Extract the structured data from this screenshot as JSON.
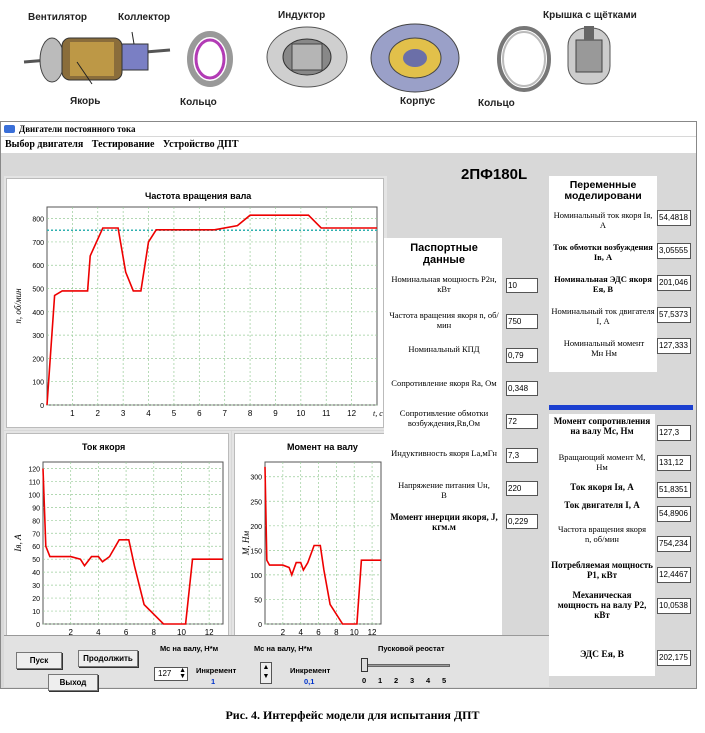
{
  "parts": {
    "fan": "Вентилятор",
    "commutator": "Коллектор",
    "armature": "Якорь",
    "ring1": "Кольцо",
    "inductor": "Индуктор",
    "housing": "Корпус",
    "ring2": "Кольцо",
    "brush_cover": "Крышка с щётками"
  },
  "window": {
    "title": "Двигатели постоянного тока",
    "menu": [
      "Выбор двигателя",
      "Тестирование",
      "Устройство ДПТ"
    ]
  },
  "motor_name": "2ПФ180L",
  "passport": {
    "header": "Паспортные данные",
    "rows": [
      {
        "label": "Номинальная мощность P2н, кВт",
        "value": "10"
      },
      {
        "label": "Частота вращения якоря n, об/мин",
        "value": "750"
      },
      {
        "label": "Номинальный КПД",
        "value": "0,79"
      },
      {
        "label": "Сопротивление якоря Rа, Ом",
        "value": "0,348"
      },
      {
        "label": "Сопротивление обмотки возбуждения,Rв,Ом",
        "value": "72"
      },
      {
        "label": "Индуктивность якоря Lа,мГн",
        "value": "7,3"
      },
      {
        "label": "Напряжение питания Uн, В",
        "value": "220"
      },
      {
        "label": "Момент инерции якоря, J, кгм.м",
        "value": "0,229"
      }
    ]
  },
  "variables": {
    "header": "Переменные моделировани",
    "rows": [
      {
        "label": "Номинальный ток якоря Iя, А",
        "value": "54,4818"
      },
      {
        "label": "Ток обмотки возбуждения Iв, А",
        "value": "3,05555"
      },
      {
        "label": "Номинальная ЭДС якоря Eя, В",
        "value": "201,046"
      },
      {
        "label": "Номинальный ток двигателя I, А",
        "value": "57,5373"
      },
      {
        "label": "Номинальный момент Mн Нм",
        "value": "127,333"
      }
    ]
  },
  "results": {
    "rows": [
      {
        "label": "Момент сопротивления на валу Mс, Нм",
        "value": "127,3"
      },
      {
        "label": "Вращающий момент M, Нм",
        "value": "131,12"
      },
      {
        "label": "Ток якоря Iя, А",
        "value": "51,8351"
      },
      {
        "label": "Ток двигателя I, А",
        "value": "54,8906"
      },
      {
        "label": "Частота вращения якоря n, об/мин",
        "value": "754,234"
      },
      {
        "label": "Потребляемая мощность P1, кВт",
        "value": "12,4467"
      },
      {
        "label": "Механическая мощность на валу P2, кВт",
        "value": "10,0538"
      },
      {
        "label": "ЭДС Eя, В",
        "value": "202,175"
      }
    ]
  },
  "controls": {
    "start": "Пуск",
    "continue": "Продолжить",
    "exit": "Выход",
    "mc_label": "Мс на валу, Н*м",
    "mc_value": "127",
    "inc1_label": "Инкремент",
    "inc1_value": "1",
    "mc2_label": "Мс на валу, Н*м",
    "inc2_label": "Инкремент",
    "inc2_value": "0,1",
    "rheostat_label": "Пусковой реостат",
    "rheostat_ticks": [
      "0",
      "1",
      "2",
      "3",
      "4",
      "5"
    ],
    "rheostat_position": 0
  },
  "caption": "Рис. 4. Интерфейс модели для испытания ДПТ",
  "chart_data": [
    {
      "type": "line",
      "title": "Частота вращения вала",
      "ylabel": "n, об/мин",
      "xlabel": "t, c",
      "xlim": [
        0,
        13
      ],
      "ylim": [
        0,
        850
      ],
      "xticks": [
        1,
        2,
        3,
        4,
        5,
        6,
        7,
        8,
        9,
        10,
        11,
        12
      ],
      "yticks": [
        0,
        100,
        200,
        300,
        400,
        500,
        600,
        700,
        800
      ],
      "reference": 750,
      "x": [
        0,
        0.3,
        0.6,
        1.0,
        1.6,
        1.7,
        2.2,
        2.8,
        3.1,
        3.4,
        3.5,
        3.7,
        4.0,
        4.3,
        5.0,
        6.0,
        6.6,
        7.5,
        8.0,
        9.0,
        10.3,
        10.8,
        13.0
      ],
      "values": [
        0,
        470,
        490,
        490,
        490,
        640,
        760,
        760,
        570,
        490,
        490,
        490,
        700,
        752,
        752,
        752,
        752,
        770,
        815,
        815,
        815,
        760,
        760
      ]
    },
    {
      "type": "line",
      "title": "Ток якоря",
      "ylabel": "Iя, А",
      "xlim": [
        0,
        13
      ],
      "ylim": [
        0,
        125
      ],
      "xticks": [
        2,
        4,
        6,
        8,
        10,
        12
      ],
      "yticks": [
        0,
        10,
        20,
        30,
        40,
        50,
        60,
        70,
        80,
        90,
        100,
        110,
        120
      ],
      "x": [
        0,
        0.2,
        0.5,
        1.0,
        1.5,
        2.0,
        2.7,
        3.0,
        3.5,
        4.0,
        4.3,
        4.8,
        5.5,
        6.2,
        6.6,
        7.3,
        8.7,
        9.3,
        10.3,
        10.8,
        13.0
      ],
      "values": [
        120,
        60,
        52,
        52,
        52,
        52,
        50,
        45,
        52,
        52,
        48,
        52,
        65,
        65,
        45,
        15,
        0,
        0,
        0,
        50,
        50
      ]
    },
    {
      "type": "line",
      "title": "Момент на валу",
      "ylabel": "M, Нм",
      "xlim": [
        0,
        13
      ],
      "ylim": [
        0,
        330
      ],
      "xticks": [
        2,
        4,
        6,
        8,
        10,
        12
      ],
      "yticks": [
        0,
        50,
        100,
        150,
        200,
        250,
        300
      ],
      "x": [
        0,
        0.2,
        0.5,
        1.0,
        2.0,
        2.7,
        3.0,
        3.5,
        4.0,
        4.3,
        4.8,
        5.5,
        6.2,
        6.6,
        7.3,
        8.7,
        9.3,
        10.3,
        10.8,
        13.0
      ],
      "values": [
        320,
        130,
        120,
        120,
        120,
        115,
        100,
        125,
        125,
        110,
        125,
        160,
        160,
        110,
        40,
        0,
        0,
        0,
        130,
        130
      ]
    }
  ]
}
